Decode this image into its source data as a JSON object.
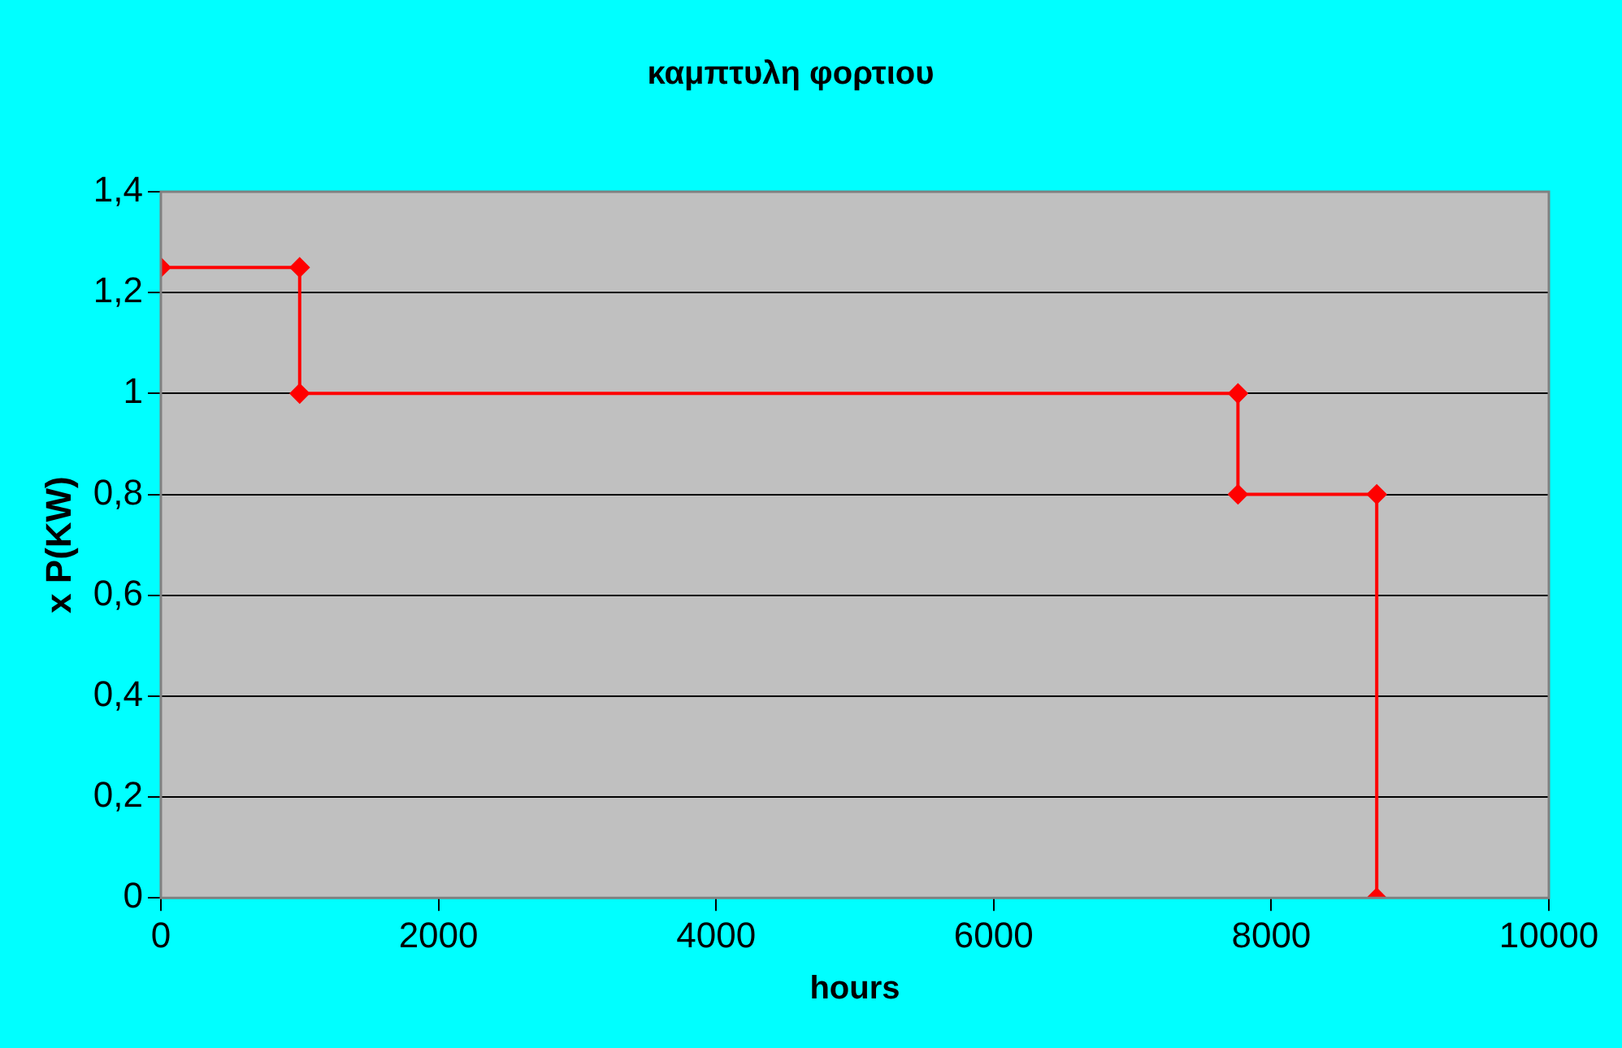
{
  "chart_data": {
    "type": "line",
    "title": "καμπτυλη φορτιου",
    "xlabel": "hours",
    "ylabel": "x P(KW)",
    "x": [
      0,
      1000,
      1000,
      7760,
      7760,
      8760,
      8760
    ],
    "series": [
      {
        "color": "#ff0000",
        "values": [
          1.25,
          1.25,
          1,
          1,
          0.8,
          0.8,
          0
        ]
      }
    ],
    "xlim": [
      0,
      10000
    ],
    "xticks": [
      0,
      2000,
      4000,
      6000,
      8000,
      10000
    ],
    "ylim": [
      0,
      1.4
    ],
    "yticks": [
      0,
      {
        "value": 0.2,
        "label": "0,2"
      },
      {
        "value": 0.4,
        "label": "0,4"
      },
      {
        "value": 0.6,
        "label": "0,6"
      },
      {
        "value": 0.8,
        "label": "0,8"
      },
      1,
      {
        "value": 1.2,
        "label": "1,2"
      },
      {
        "value": 1.4,
        "label": "1,4"
      }
    ],
    "grid": "y",
    "legend": false,
    "marker": "diamond",
    "line_style": "solid"
  }
}
